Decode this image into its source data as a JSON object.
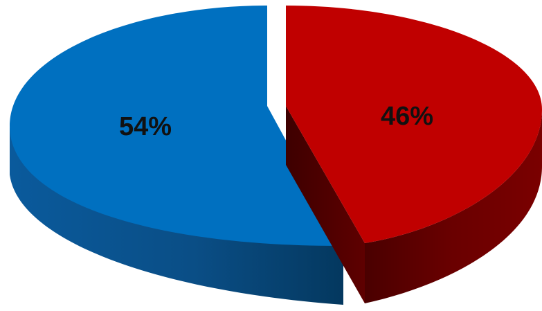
{
  "chart_data": {
    "type": "pie",
    "style": "3d-exploded",
    "slices": [
      {
        "label": "54%",
        "value": 54,
        "color": "#0070C0",
        "shade_color": "#04406C"
      },
      {
        "label": "46%",
        "value": 46,
        "color": "#C00000",
        "shade_color": "#5C0000"
      }
    ],
    "legend": "none"
  }
}
